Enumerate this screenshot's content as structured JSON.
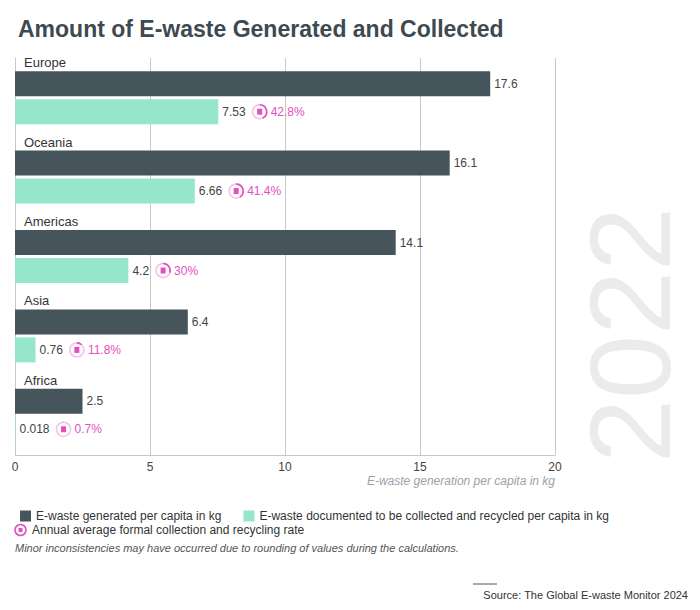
{
  "chart_data": {
    "type": "bar",
    "title": "Amount of E-waste Generated and Collected",
    "orientation": "horizontal",
    "categories": [
      "Europe",
      "Oceania",
      "Americas",
      "Asia",
      "Africa"
    ],
    "series": [
      {
        "name": "E-waste generated per capita in kg",
        "color": "#46545c",
        "values": [
          17.6,
          16.1,
          14.1,
          6.4,
          2.5
        ]
      },
      {
        "name": "E-waste documented to be collected and recycled per capita in kg",
        "color": "#96e6cc",
        "values": [
          7.53,
          6.66,
          4.2,
          0.76,
          0.018
        ]
      }
    ],
    "rate": {
      "name": "Annual average formal collection and recycling rate",
      "color": "#e34fbf",
      "values": [
        42.8,
        41.4,
        30,
        11.8,
        0.7
      ],
      "value_labels": [
        "42.8%",
        "41.4%",
        "30%",
        "11.8%",
        "0.7%"
      ]
    },
    "xlabel": "E-waste generation per capita in kg",
    "xlim": [
      0,
      20
    ],
    "xticks": [
      0,
      5,
      10,
      15,
      20
    ],
    "grid": true,
    "data_labels": true,
    "legend": "bottom",
    "annotation": "2022",
    "note": "Minor inconsistencies may have occurred due to rounding of values during the calculations.",
    "source": "Source: The Global E-waste Monitor 2024"
  }
}
